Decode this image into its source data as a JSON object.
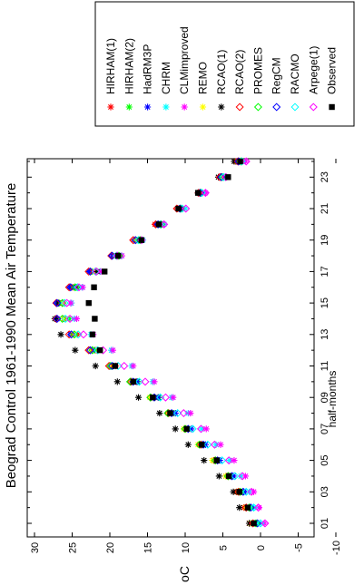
{
  "chart_data": {
    "type": "scatter",
    "title": "Beograd Control 1961-1990 Mean Air Temperature",
    "xlabel": "half-months",
    "ylabel": "oC",
    "x_ticks": [
      "01",
      "03",
      "05",
      "07",
      "09",
      "11",
      "13",
      "15",
      "17",
      "19",
      "21",
      "23"
    ],
    "y_ticks": [
      "30",
      "25",
      "20",
      "15",
      "10",
      "5",
      "0",
      "-5",
      "-10"
    ],
    "ylim": [
      -10,
      32
    ],
    "xlim": [
      0,
      24.5
    ],
    "orientation": "rotated-90-ccw",
    "grid": false,
    "legend_position": "top-right",
    "x": [
      1,
      2,
      3,
      4,
      5,
      6,
      7,
      8,
      9,
      10,
      11,
      12,
      13,
      14,
      15,
      16,
      17,
      18,
      19,
      20,
      21,
      22,
      23,
      24
    ],
    "series": [
      {
        "name": "HIRHAM(1)",
        "marker": "star",
        "color": "#ff0000",
        "values": [
          1.5,
          2.2,
          3.2,
          4.6,
          6.2,
          8.1,
          9.9,
          11.9,
          14.0,
          16.5,
          19.2,
          21.8,
          24.3,
          26.1,
          26.3,
          24.9,
          22.5,
          19.7,
          16.8,
          14.0,
          11.0,
          8.3,
          5.3,
          3.3
        ]
      },
      {
        "name": "HIRHAM(2)",
        "marker": "star",
        "color": "#00ff00",
        "values": [
          0.8,
          1.5,
          2.5,
          4.0,
          5.9,
          7.8,
          9.6,
          11.5,
          13.5,
          16.3,
          19.5,
          22.0,
          24.7,
          25.4,
          26.7,
          24.6,
          22.3,
          19.2,
          16.5,
          13.2,
          10.4,
          7.7,
          4.7,
          2.5
        ]
      },
      {
        "name": "HadRM3P",
        "marker": "star",
        "color": "#0000ff",
        "values": [
          0.5,
          1.3,
          2.2,
          3.6,
          5.4,
          7.3,
          9.2,
          11.3,
          13.6,
          16.4,
          19.5,
          22.3,
          25.2,
          27.0,
          27.0,
          25.3,
          22.7,
          19.6,
          16.4,
          13.6,
          10.6,
          7.9,
          5.3,
          3.2
        ]
      },
      {
        "name": "CHRM",
        "marker": "star",
        "color": "#00ffff",
        "values": [
          0.1,
          0.9,
          1.5,
          2.6,
          4.1,
          5.9,
          7.8,
          9.6,
          11.8,
          14.3,
          17.1,
          19.8,
          22.5,
          24.7,
          25.1,
          23.7,
          21.3,
          18.5,
          15.6,
          12.8,
          10.0,
          7.3,
          4.7,
          2.4
        ]
      },
      {
        "name": "CLMimproved",
        "marker": "star",
        "color": "#ff00ff",
        "values": [
          -0.5,
          0.2,
          0.9,
          2.0,
          3.5,
          5.3,
          7.2,
          9.3,
          11.6,
          14.1,
          16.9,
          19.6,
          22.2,
          24.4,
          25.2,
          23.6,
          21.2,
          18.4,
          15.7,
          13.0,
          10.3,
          7.3,
          4.5,
          2.0
        ]
      },
      {
        "name": "REMO",
        "marker": "star",
        "color": "#ffff00",
        "values": [
          1.3,
          2.0,
          3.1,
          4.6,
          6.4,
          8.3,
          10.2,
          12.3,
          14.7,
          17.2,
          19.9,
          22.5,
          24.9,
          26.2,
          26.2,
          24.4,
          22.0,
          19.2,
          16.4,
          13.5,
          10.8,
          8.0,
          5.3,
          3.1
        ]
      },
      {
        "name": "RCAO(1)",
        "marker": "star",
        "color": "#000000",
        "values": [
          1.5,
          2.8,
          3.6,
          5.5,
          7.5,
          9.6,
          11.3,
          13.4,
          16.2,
          19.0,
          21.9,
          24.6,
          26.5,
          27.3,
          26.8,
          24.4,
          21.7,
          19.0,
          16.1,
          13.5,
          10.7,
          8.3,
          5.6,
          3.5
        ]
      },
      {
        "name": "RCAO(2)",
        "marker": "diamond",
        "color": "#ff0000",
        "values": [
          1.0,
          1.9,
          2.9,
          4.3,
          6.0,
          7.9,
          10.0,
          12.2,
          14.6,
          17.2,
          20.1,
          22.8,
          25.4,
          27.1,
          27.1,
          25.4,
          22.8,
          19.8,
          16.9,
          13.9,
          11.1,
          8.2,
          5.4,
          3.0
        ]
      },
      {
        "name": "PROMES",
        "marker": "diamond",
        "color": "#00ff00",
        "values": [
          0.6,
          1.5,
          2.7,
          4.3,
          6.0,
          8.1,
          10.0,
          12.3,
          14.6,
          17.3,
          19.9,
          22.3,
          24.7,
          26.3,
          26.3,
          24.6,
          21.8,
          18.8,
          16.0,
          13.2,
          10.6,
          7.9,
          5.1,
          2.6
        ]
      },
      {
        "name": "RegCM",
        "marker": "diamond",
        "color": "#0000ff",
        "values": [
          0.4,
          1.3,
          2.3,
          3.8,
          5.7,
          7.6,
          9.6,
          11.8,
          14.1,
          16.9,
          19.7,
          22.6,
          25.1,
          27.0,
          27.0,
          25.2,
          22.6,
          19.7,
          16.6,
          13.6,
          10.7,
          8.0,
          5.2,
          2.9
        ]
      },
      {
        "name": "RACMO",
        "marker": "diamond",
        "color": "#00ffff",
        "values": [
          0.0,
          0.9,
          1.9,
          3.4,
          5.1,
          7.0,
          9.0,
          11.0,
          13.3,
          16.1,
          18.9,
          21.6,
          24.2,
          25.9,
          26.0,
          24.3,
          21.9,
          19.1,
          16.2,
          13.3,
          10.4,
          7.8,
          4.9,
          2.5
        ]
      },
      {
        "name": "Arpege(1)",
        "marker": "diamond",
        "color": "#ff00ff",
        "values": [
          -0.6,
          0.3,
          1.2,
          2.4,
          4.2,
          6.1,
          7.9,
          10.2,
          12.6,
          15.3,
          18.1,
          20.9,
          23.5,
          25.3,
          25.7,
          24.1,
          21.8,
          19.0,
          15.8,
          12.8,
          9.9,
          7.3,
          4.6,
          1.9
        ]
      },
      {
        "name": "Observed",
        "marker": "square",
        "color": "#000000",
        "values": [
          0.9,
          1.7,
          2.8,
          4.2,
          5.8,
          7.8,
          9.8,
          12.0,
          14.3,
          16.9,
          19.3,
          21.3,
          22.3,
          22.0,
          22.8,
          22.1,
          20.7,
          18.9,
          15.8,
          13.5,
          10.9,
          8.3,
          4.3,
          2.7
        ]
      }
    ]
  }
}
